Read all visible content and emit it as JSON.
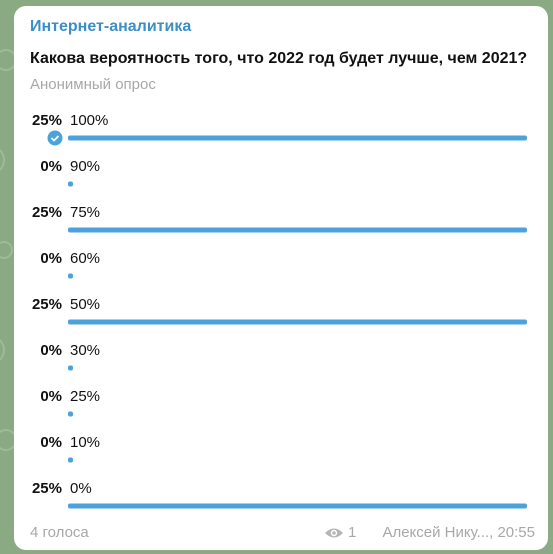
{
  "channel": "Интернет-аналитика",
  "question": "Какова вероятность того, что 2022 год будет лучше, чем 2021?",
  "poll_type": "Анонимный опрос",
  "options": [
    {
      "percent": 25,
      "percent_label": "25%",
      "text": "100%",
      "chosen": true
    },
    {
      "percent": 0,
      "percent_label": "0%",
      "text": "90%"
    },
    {
      "percent": 25,
      "percent_label": "25%",
      "text": "75%"
    },
    {
      "percent": 0,
      "percent_label": "0%",
      "text": "60%"
    },
    {
      "percent": 25,
      "percent_label": "25%",
      "text": "50%"
    },
    {
      "percent": 0,
      "percent_label": "0%",
      "text": "30%"
    },
    {
      "percent": 0,
      "percent_label": "0%",
      "text": "25%"
    },
    {
      "percent": 0,
      "percent_label": "0%",
      "text": "10%"
    },
    {
      "percent": 25,
      "percent_label": "25%",
      "text": "0%"
    }
  ],
  "footer": {
    "votes": "4 голоса",
    "views": "1",
    "signature": "Алексей Нику..., 20:55"
  }
}
